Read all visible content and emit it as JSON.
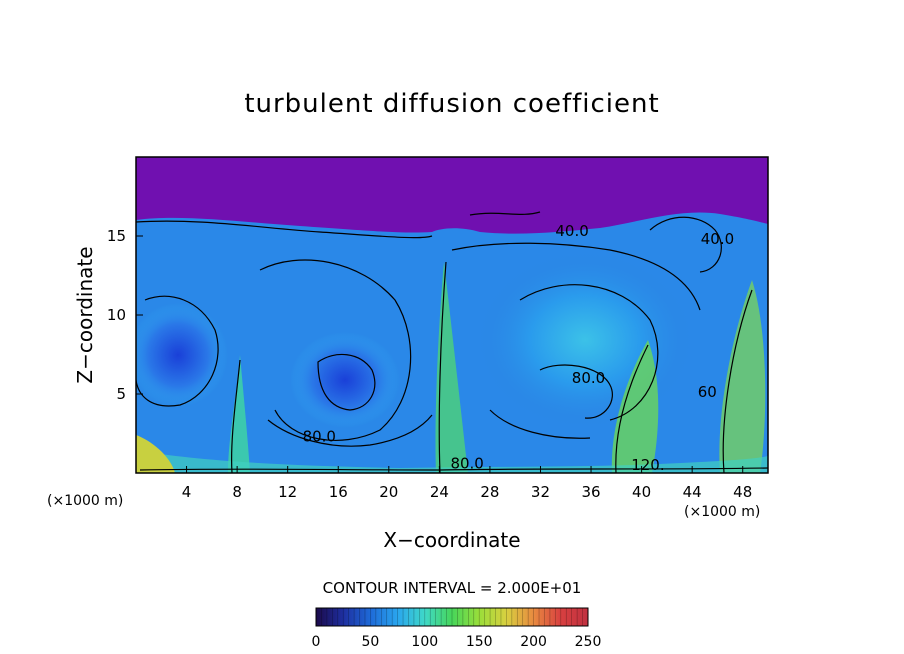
{
  "chart_data": {
    "type": "heatmap",
    "title": "turbulent diffusion coefficient",
    "xlabel": "X−coordinate",
    "ylabel": "Z−coordinate",
    "x_unit": "(×1000 m)",
    "z_unit": "(×1000 m)",
    "xlim": [
      0,
      50
    ],
    "ylim": [
      0,
      20
    ],
    "xticks": [
      4,
      8,
      12,
      16,
      20,
      24,
      28,
      32,
      36,
      40,
      44,
      48
    ],
    "yticks": [
      5,
      10,
      15
    ],
    "contour_interval_text": "CONTOUR INTERVAL = 2.000E+01",
    "contour_labels": [
      {
        "text": "80.0",
        "x": 14.5,
        "z": 2.0
      },
      {
        "text": "80.0",
        "x": 26.2,
        "z": 0.3
      },
      {
        "text": "40.0",
        "x": 34.5,
        "z": 15.0
      },
      {
        "text": "80.0",
        "x": 35.8,
        "z": 5.7
      },
      {
        "text": "120.",
        "x": 40.5,
        "z": 0.2
      },
      {
        "text": "40.0",
        "x": 46.0,
        "z": 14.5
      },
      {
        "text": "60",
        "x": 45.2,
        "z": 4.8
      }
    ],
    "colorbar": {
      "range": [
        0,
        250
      ],
      "ticks": [
        0,
        50,
        100,
        150,
        200,
        250
      ],
      "colors": [
        "#1b0a4a",
        "#1e2fa0",
        "#1e6ad8",
        "#2aa6ee",
        "#3fd8c8",
        "#47d65a",
        "#9ade3a",
        "#d8d040",
        "#e88a40",
        "#d84040",
        "#c03040"
      ]
    },
    "field_colors": {
      "background": "#7010b0",
      "low": "#2030c8",
      "mid": "#2880e8",
      "high": "#30b0f0",
      "peak": "#40e090"
    }
  }
}
